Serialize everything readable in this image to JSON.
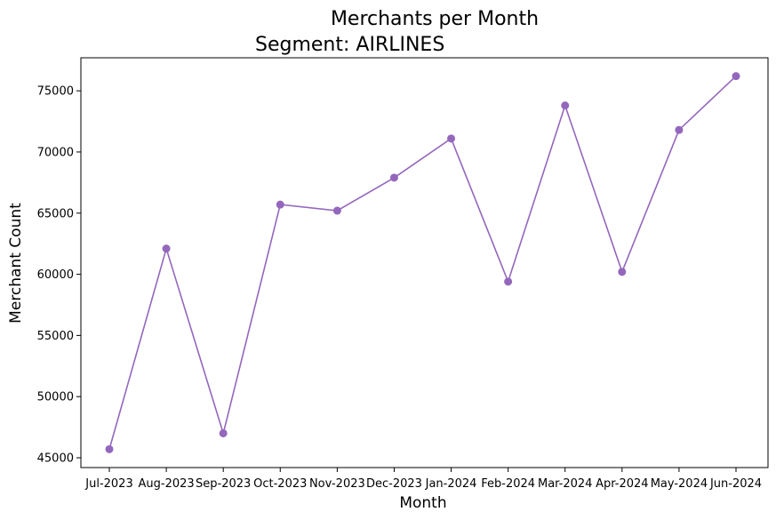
{
  "chart_data": {
    "type": "line",
    "title": "Merchants per Month",
    "subtitle": "Segment: AIRLINES",
    "xlabel": "Month",
    "ylabel": "Merchant Count",
    "categories": [
      "Jul-2023",
      "Aug-2023",
      "Sep-2023",
      "Oct-2023",
      "Nov-2023",
      "Dec-2023",
      "Jan-2024",
      "Feb-2024",
      "Mar-2024",
      "Apr-2024",
      "May-2024",
      "Jun-2024"
    ],
    "series": [
      {
        "values": [
          45700,
          62100,
          47000,
          65700,
          65200,
          67900,
          71100,
          59400,
          73800,
          60200,
          71800,
          76200
        ],
        "color": "#9467bd",
        "marker": "circle"
      }
    ],
    "yticks": [
      45000,
      50000,
      55000,
      60000,
      65000,
      70000,
      75000
    ],
    "ylim": [
      44200,
      77700
    ],
    "grid": false,
    "legend": "none"
  }
}
